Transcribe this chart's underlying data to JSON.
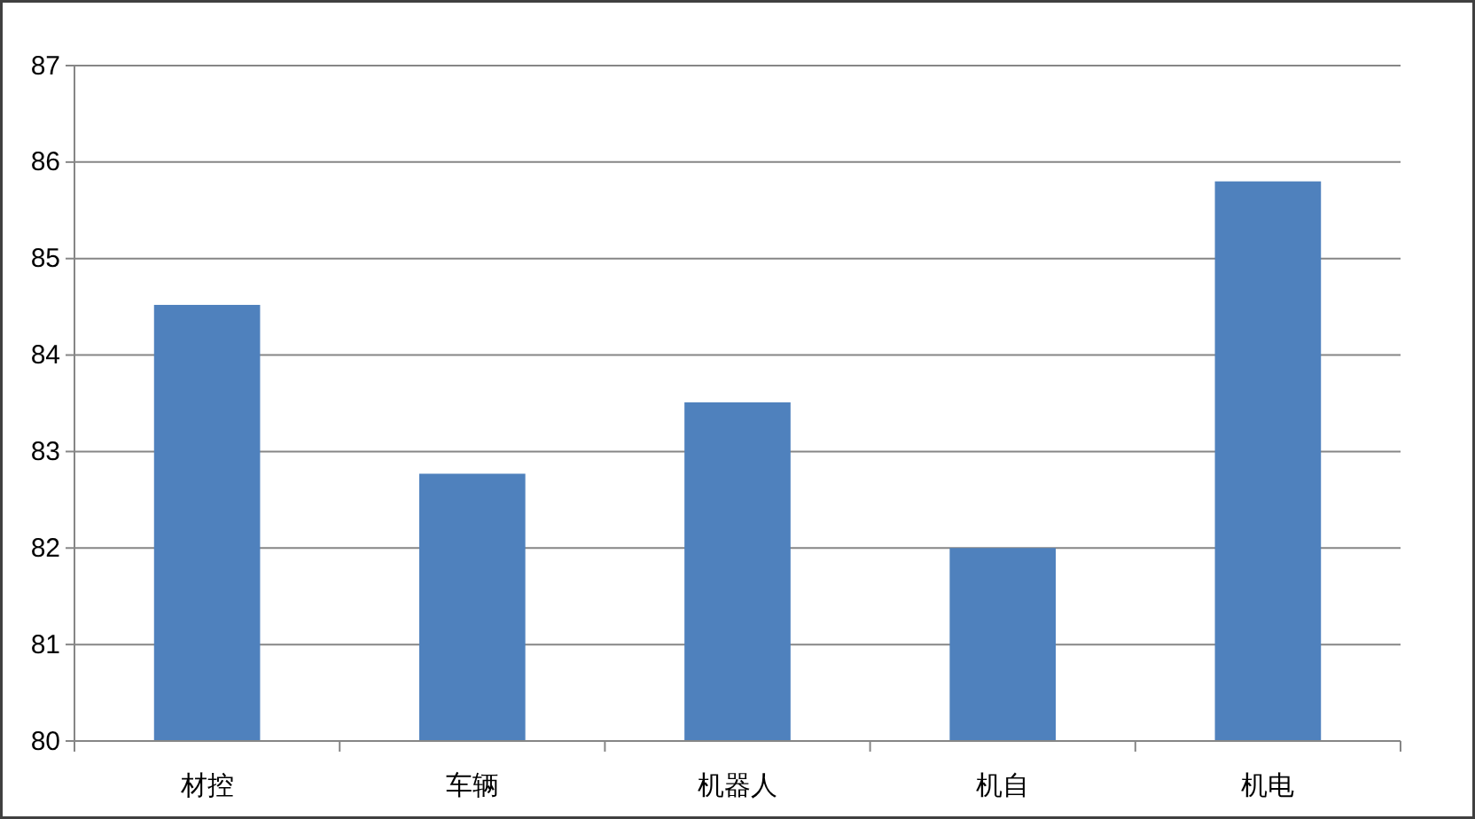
{
  "chart_data": {
    "type": "bar",
    "categories": [
      "材控",
      "车辆",
      "机器人",
      "机自",
      "机电"
    ],
    "values": [
      84.52,
      82.77,
      83.51,
      82.0,
      85.8
    ],
    "color": "#4f81bd",
    "ylim": [
      80,
      87
    ],
    "yticks": [
      80,
      81,
      82,
      83,
      84,
      85,
      86,
      87
    ],
    "grid": "y"
  }
}
